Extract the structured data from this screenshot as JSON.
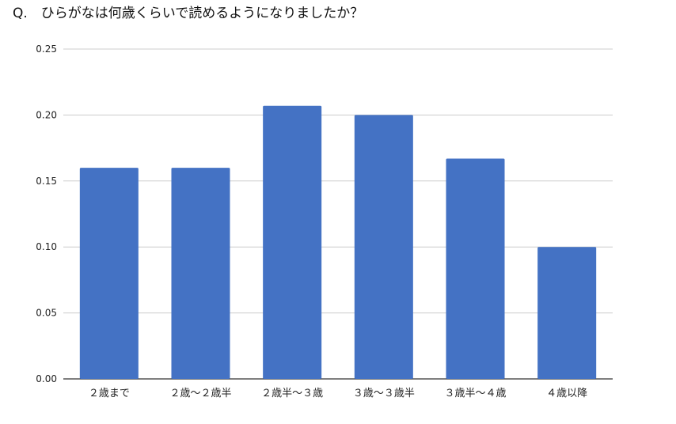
{
  "title": "Q.　ひらがなは何歳くらいで読めるようになりましたか？",
  "chart_data": {
    "type": "bar",
    "categories": [
      "２歳まで",
      "２歳〜２歳半",
      "２歳半〜３歳",
      "３歳〜３歳半",
      "３歳半〜４歳",
      "４歳以降"
    ],
    "values": [
      0.16,
      0.16,
      0.207,
      0.2,
      0.167,
      0.1
    ],
    "ylim": [
      0,
      0.25
    ],
    "yticks": [
      "0.00",
      "0.05",
      "0.10",
      "0.15",
      "0.20",
      "0.25"
    ],
    "xlabel": "",
    "ylabel": "",
    "grid": true,
    "bar_color": "#4472c4"
  }
}
